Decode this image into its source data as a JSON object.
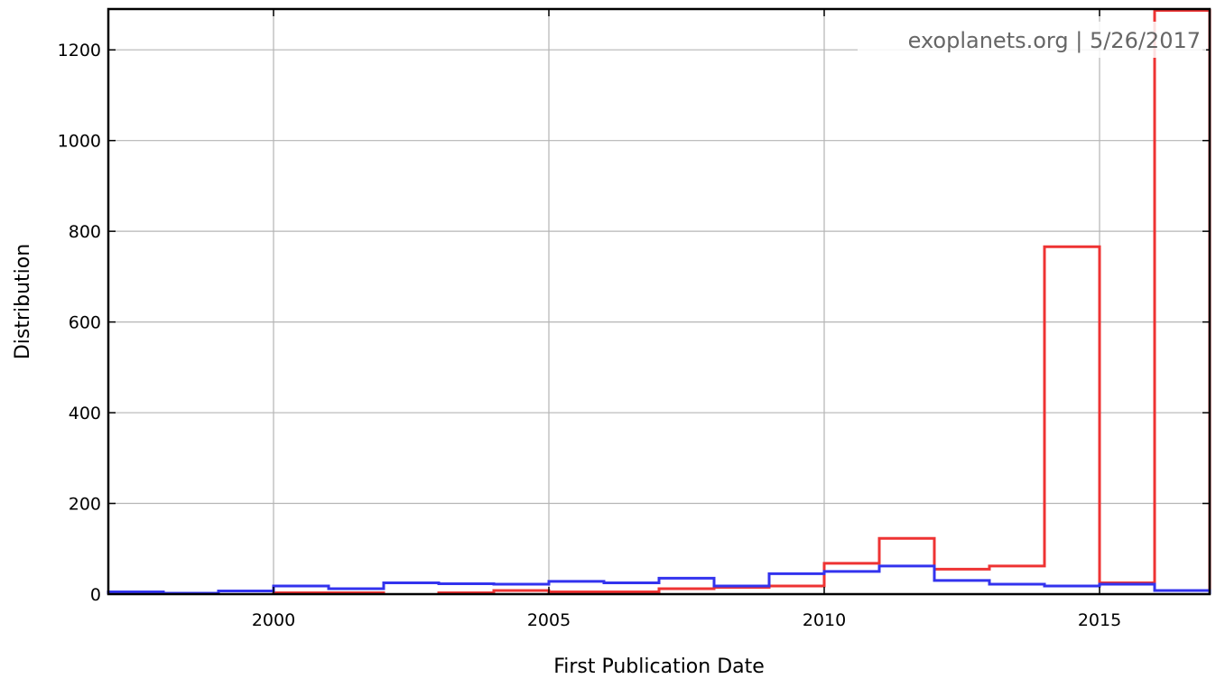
{
  "chart_data": {
    "type": "step-histogram",
    "xlabel": "First Publication Date",
    "ylabel": "Distribution",
    "xlim": [
      1997,
      2017
    ],
    "ylim": [
      0,
      1290
    ],
    "x_ticks": [
      2000,
      2005,
      2010,
      2015
    ],
    "y_ticks": [
      0,
      200,
      400,
      600,
      800,
      1000,
      1200
    ],
    "grid": true,
    "annotation": "exoplanets.org | 5/26/2017",
    "series": [
      {
        "color": "#ee3333",
        "bins": [
          {
            "x0": 2000,
            "x1": 2001,
            "y": 3
          },
          {
            "x0": 2001,
            "x1": 2002,
            "y": 3
          },
          {
            "x0": 2003,
            "x1": 2004,
            "y": 3
          },
          {
            "x0": 2004,
            "x1": 2005,
            "y": 8
          },
          {
            "x0": 2005,
            "x1": 2006,
            "y": 5
          },
          {
            "x0": 2006,
            "x1": 2007,
            "y": 5
          },
          {
            "x0": 2007,
            "x1": 2008,
            "y": 12
          },
          {
            "x0": 2008,
            "x1": 2009,
            "y": 15
          },
          {
            "x0": 2009,
            "x1": 2010,
            "y": 18
          },
          {
            "x0": 2010,
            "x1": 2011,
            "y": 68
          },
          {
            "x0": 2011,
            "x1": 2012,
            "y": 123
          },
          {
            "x0": 2012,
            "x1": 2013,
            "y": 55
          },
          {
            "x0": 2013,
            "x1": 2014,
            "y": 62
          },
          {
            "x0": 2014,
            "x1": 2015,
            "y": 766
          },
          {
            "x0": 2015,
            "x1": 2016,
            "y": 25
          },
          {
            "x0": 2016,
            "x1": 2017,
            "y": 1287
          }
        ]
      },
      {
        "color": "#3333ee",
        "bins": [
          {
            "x0": 1997,
            "x1": 1998,
            "y": 5
          },
          {
            "x0": 1998,
            "x1": 1999,
            "y": 2
          },
          {
            "x0": 1999,
            "x1": 2000,
            "y": 7
          },
          {
            "x0": 2000,
            "x1": 2001,
            "y": 18
          },
          {
            "x0": 2001,
            "x1": 2002,
            "y": 12
          },
          {
            "x0": 2002,
            "x1": 2003,
            "y": 25
          },
          {
            "x0": 2003,
            "x1": 2004,
            "y": 23
          },
          {
            "x0": 2004,
            "x1": 2005,
            "y": 22
          },
          {
            "x0": 2005,
            "x1": 2006,
            "y": 28
          },
          {
            "x0": 2006,
            "x1": 2007,
            "y": 25
          },
          {
            "x0": 2007,
            "x1": 2008,
            "y": 35
          },
          {
            "x0": 2008,
            "x1": 2009,
            "y": 18
          },
          {
            "x0": 2009,
            "x1": 2010,
            "y": 45
          },
          {
            "x0": 2010,
            "x1": 2011,
            "y": 50
          },
          {
            "x0": 2011,
            "x1": 2012,
            "y": 62
          },
          {
            "x0": 2012,
            "x1": 2013,
            "y": 30
          },
          {
            "x0": 2013,
            "x1": 2014,
            "y": 22
          },
          {
            "x0": 2014,
            "x1": 2015,
            "y": 18
          },
          {
            "x0": 2015,
            "x1": 2016,
            "y": 22
          },
          {
            "x0": 2016,
            "x1": 2017,
            "y": 8
          }
        ]
      }
    ]
  }
}
